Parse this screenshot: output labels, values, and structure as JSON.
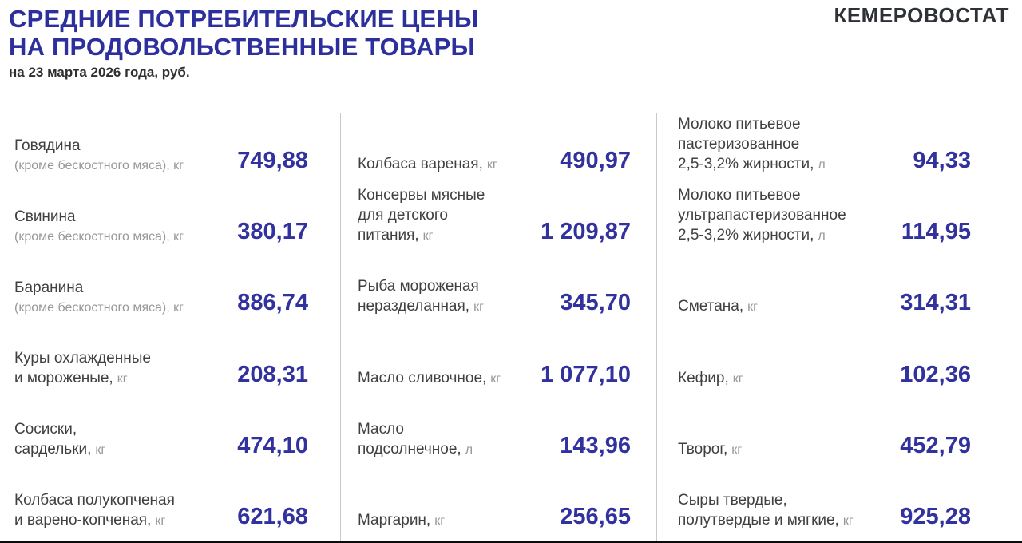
{
  "meta": {
    "title": "СРЕДНИЕ ПОТРЕБИТЕЛЬСКИЕ ЦЕНЫ\nНА ПРОДОВОЛЬСТВЕННЫЕ ТОВАРЫ",
    "subtitle": "на 23 марта 2026 года, руб.",
    "brand": "КЕМЕРОВОСТАТ"
  },
  "colors": {
    "title_blue": "#2c2f9c",
    "price_blue": "#32329e",
    "label_dark": "#404040",
    "label_muted": "#98989c",
    "divider": "#c9c9c9",
    "bottom_rule": "#0b0b0b",
    "background": "#ffffff"
  },
  "columns": [
    {
      "items": [
        {
          "name": "Говядина",
          "unit": "",
          "note": "(кроме бескостного мяса), кг",
          "price": "749,88"
        },
        {
          "name": "Свинина",
          "unit": "",
          "note": "(кроме бескостного мяса), кг",
          "price": "380,17"
        },
        {
          "name": "Баранина",
          "unit": "",
          "note": "(кроме бескостного мяса), кг",
          "price": "886,74"
        },
        {
          "name": "Куры охлажденные\nи мороженые,",
          "unit": "кг",
          "note": "",
          "price": "208,31"
        },
        {
          "name": "Сосиски,\nсардельки,",
          "unit": "кг",
          "note": "",
          "price": "474,10"
        },
        {
          "name": "Колбаса полукопченая\nи варено-копченая,",
          "unit": "кг",
          "note": "",
          "price": "621,68"
        }
      ]
    },
    {
      "items": [
        {
          "name": "Колбаса вареная,",
          "unit": "кг",
          "note": "",
          "price": "490,97"
        },
        {
          "name": "Консервы мясные\nдля детского\nпитания,",
          "unit": "кг",
          "note": "",
          "price": "1 209,87"
        },
        {
          "name": "Рыба мороженая\nнеразделанная,",
          "unit": "кг",
          "note": "",
          "price": "345,70"
        },
        {
          "name": "Масло сливочное,",
          "unit": "кг",
          "note": "",
          "price": "1 077,10"
        },
        {
          "name": "Масло\nподсолнечное,",
          "unit": "л",
          "note": "",
          "price": "143,96"
        },
        {
          "name": "Маргарин,",
          "unit": "кг",
          "note": "",
          "price": "256,65"
        }
      ]
    },
    {
      "items": [
        {
          "name": "Молоко питьевое\nпастеризованное\n2,5-3,2% жирности,",
          "unit": "л",
          "note": "",
          "price": "94,33"
        },
        {
          "name": "Молоко питьевое\nультрапастеризованное\n2,5-3,2% жирности,",
          "unit": "л",
          "note": "",
          "price": "114,95"
        },
        {
          "name": "Сметана,",
          "unit": "кг",
          "note": "",
          "price": "314,31"
        },
        {
          "name": "Кефир,",
          "unit": "кг",
          "note": "",
          "price": "102,36"
        },
        {
          "name": "Творог,",
          "unit": "кг",
          "note": "",
          "price": "452,79"
        },
        {
          "name": "Сыры твердые,\nполутвердые и мягкие,",
          "unit": "кг",
          "note": "",
          "price": "925,28"
        }
      ]
    }
  ],
  "chart_data": {
    "type": "table",
    "title": "СРЕДНИЕ ПОТРЕБИТЕЛЬСКИЕ ЦЕНЫ НА ПРОДОВОЛЬСТВЕННЫЕ ТОВАРЫ",
    "subtitle": "на 23 марта 2026 года, руб.",
    "publisher": "КЕМЕРОВОСТАТ",
    "unit_currency": "руб.",
    "categories": [
      "Говядина (кроме бескостного мяса), кг",
      "Свинина (кроме бескостного мяса), кг",
      "Баранина (кроме бескостного мяса), кг",
      "Куры охлажденные и мороженые, кг",
      "Сосиски, сардельки, кг",
      "Колбаса полукопченая и варено-копченая, кг",
      "Колбаса вареная, кг",
      "Консервы мясные для детского питания, кг",
      "Рыба мороженая неразделанная, кг",
      "Масло сливочное, кг",
      "Масло подсолнечное, л",
      "Маргарин, кг",
      "Молоко питьевое пастеризованное 2,5-3,2% жирности, л",
      "Молоко питьевое ультрапастеризованное 2,5-3,2% жирности, л",
      "Сметана, кг",
      "Кефир, кг",
      "Творог, кг",
      "Сыры твердые, полутвердые и мягкие, кг"
    ],
    "values": [
      749.88,
      380.17,
      886.74,
      208.31,
      474.1,
      621.68,
      490.97,
      1209.87,
      345.7,
      1077.1,
      143.96,
      256.65,
      94.33,
      114.95,
      314.31,
      102.36,
      452.79,
      925.28
    ]
  }
}
